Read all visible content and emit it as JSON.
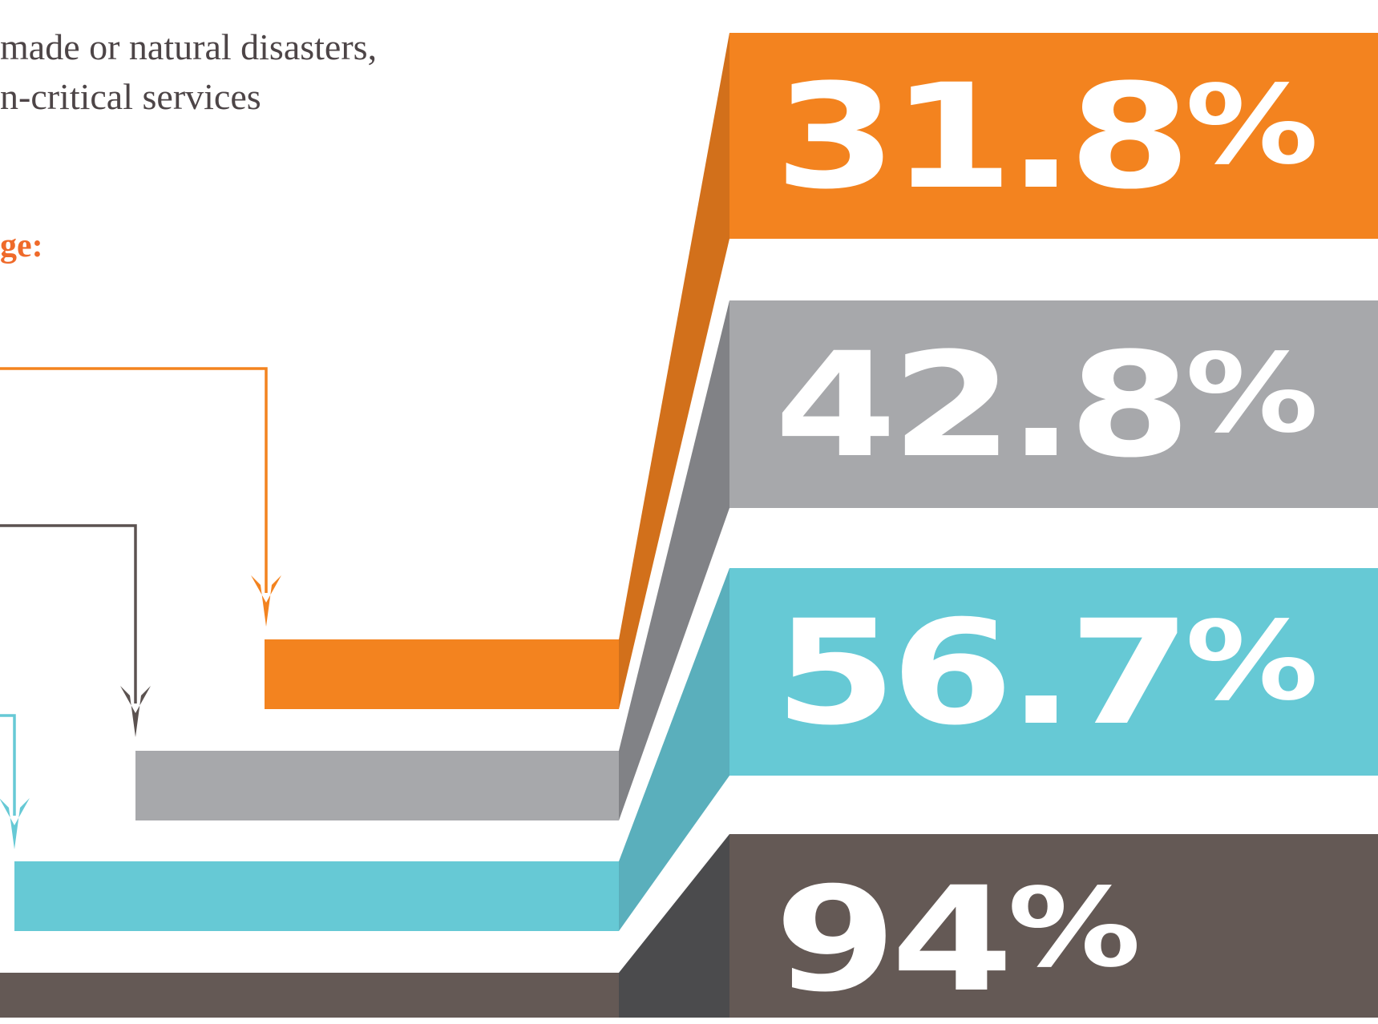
{
  "intro": {
    "line1": "made or natural disasters,",
    "line2": "n-critical services"
  },
  "heading": "ge:",
  "colors": {
    "orange": "#f3831f",
    "orange_shade": "#d2701b",
    "gray": "#a7a8ab",
    "gray_shade": "#818286",
    "teal": "#66c9d5",
    "teal_shade": "#5aafbc",
    "brown": "#645955",
    "brown_shade": "#4b4b4d",
    "arrow_orange": "#f3831f",
    "arrow_brown": "#5b5250",
    "arrow_teal": "#66c9d5"
  },
  "stats": [
    {
      "number": "31.8",
      "unit": "%",
      "color_key": "orange"
    },
    {
      "number": "42.8",
      "unit": "%",
      "color_key": "gray"
    },
    {
      "number": "56.7",
      "unit": "%",
      "color_key": "teal"
    },
    {
      "number": "94",
      "unit": "%",
      "color_key": "brown"
    }
  ]
}
